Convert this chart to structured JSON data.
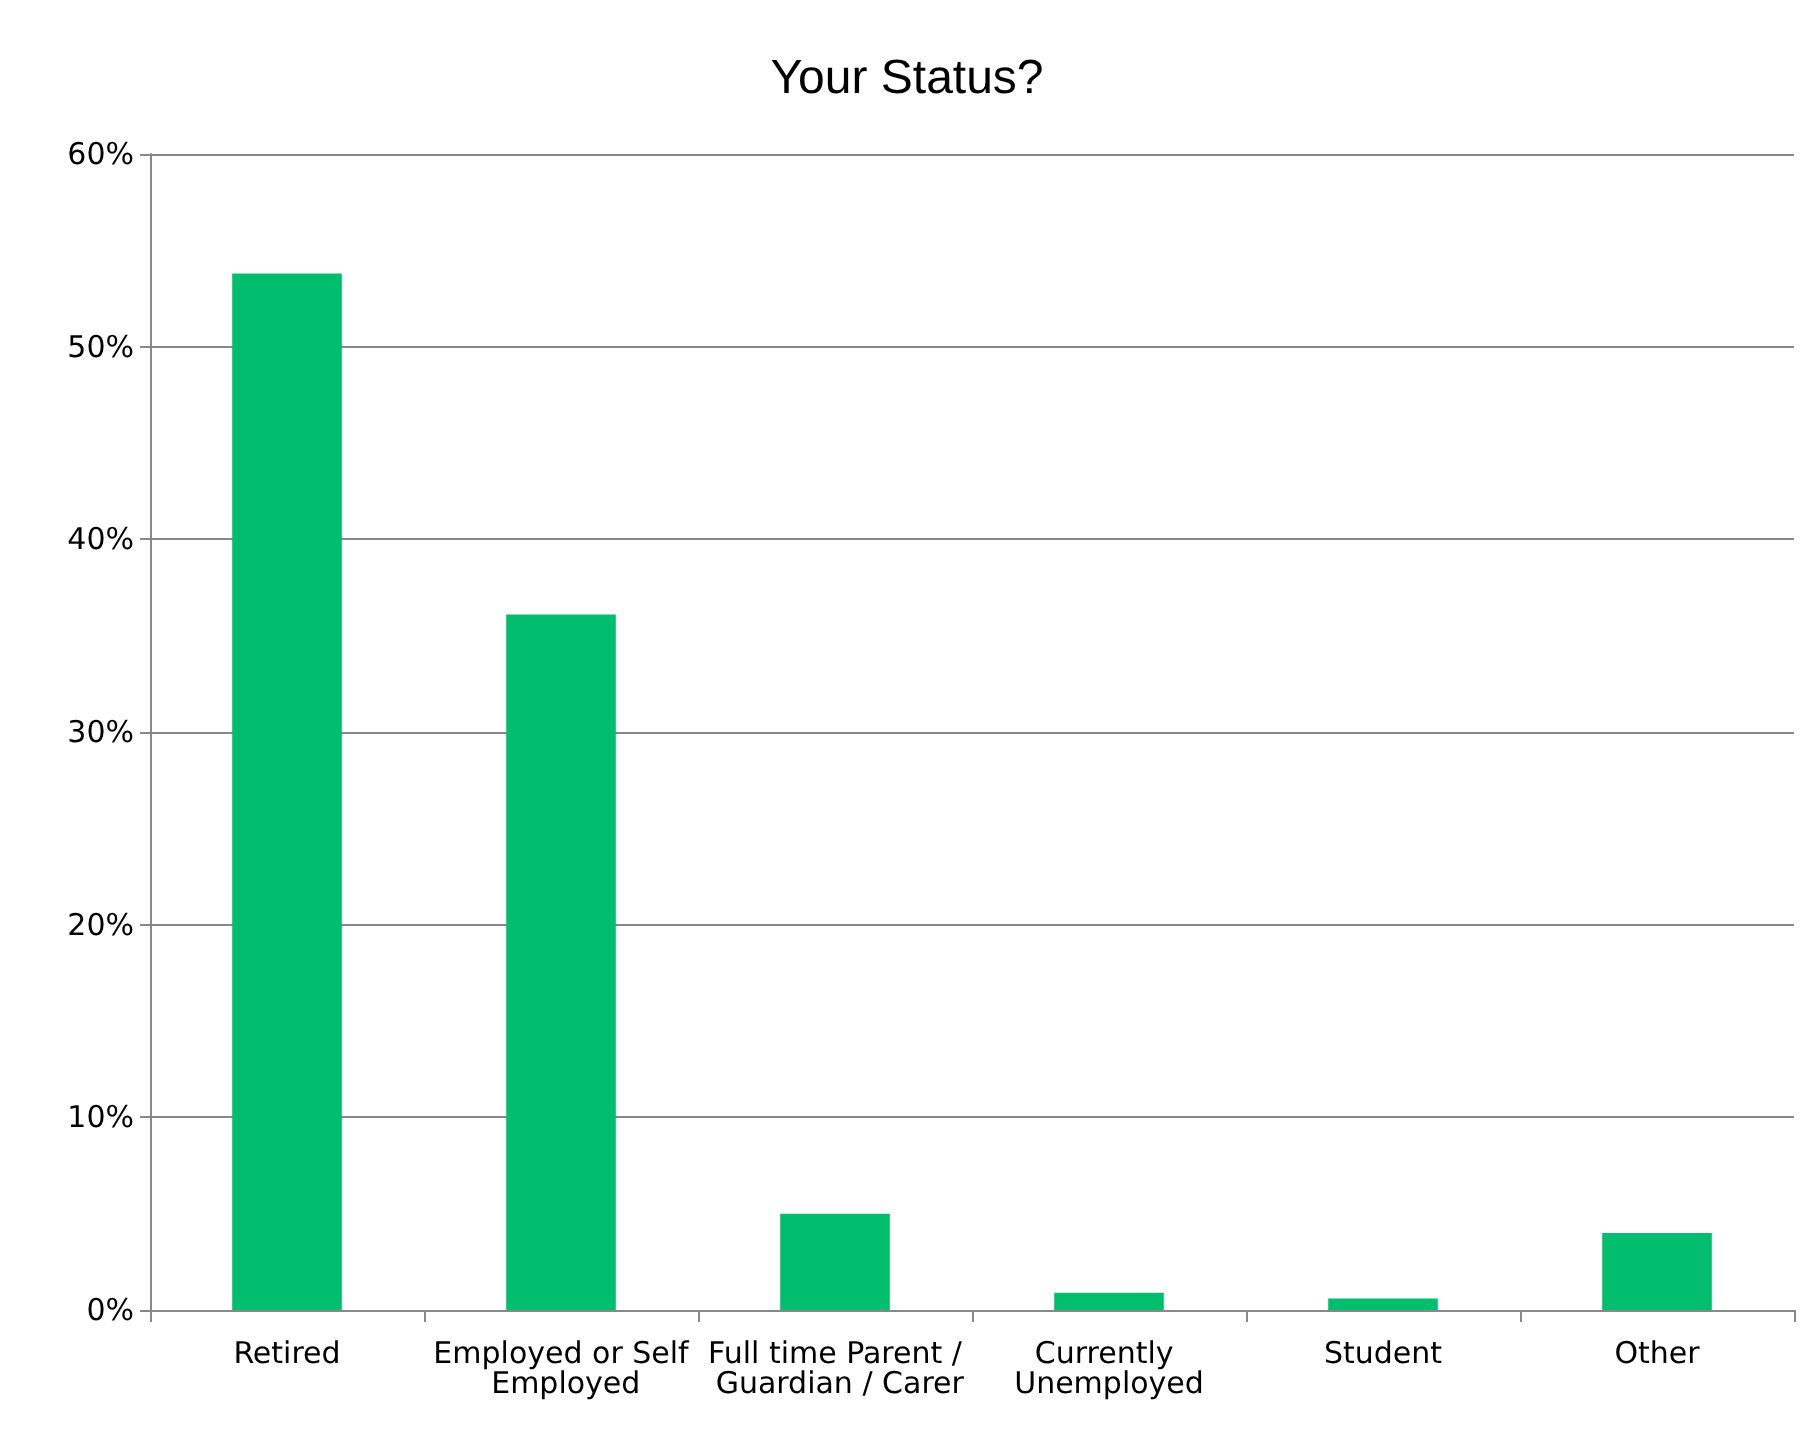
{
  "chart_data": {
    "type": "bar",
    "title": "Your Status?",
    "categories": [
      "Retired",
      "Employed or Self Employed",
      "Full time Parent / Guardian / Carer",
      "Currently Unemployed",
      "Student",
      "Other"
    ],
    "values": [
      53.8,
      36.1,
      5.0,
      0.9,
      0.6,
      4.0
    ],
    "color": "#00be6e",
    "ylim": [
      0,
      60
    ],
    "yticks": [
      {
        "value": 0,
        "label": "0%"
      },
      {
        "value": 10,
        "label": "10%"
      },
      {
        "value": 20,
        "label": "20%"
      },
      {
        "value": 30,
        "label": "30%"
      },
      {
        "value": 40,
        "label": "40%"
      },
      {
        "value": 50,
        "label": "50%"
      },
      {
        "value": 60,
        "label": "60%"
      }
    ],
    "grid": "y"
  }
}
